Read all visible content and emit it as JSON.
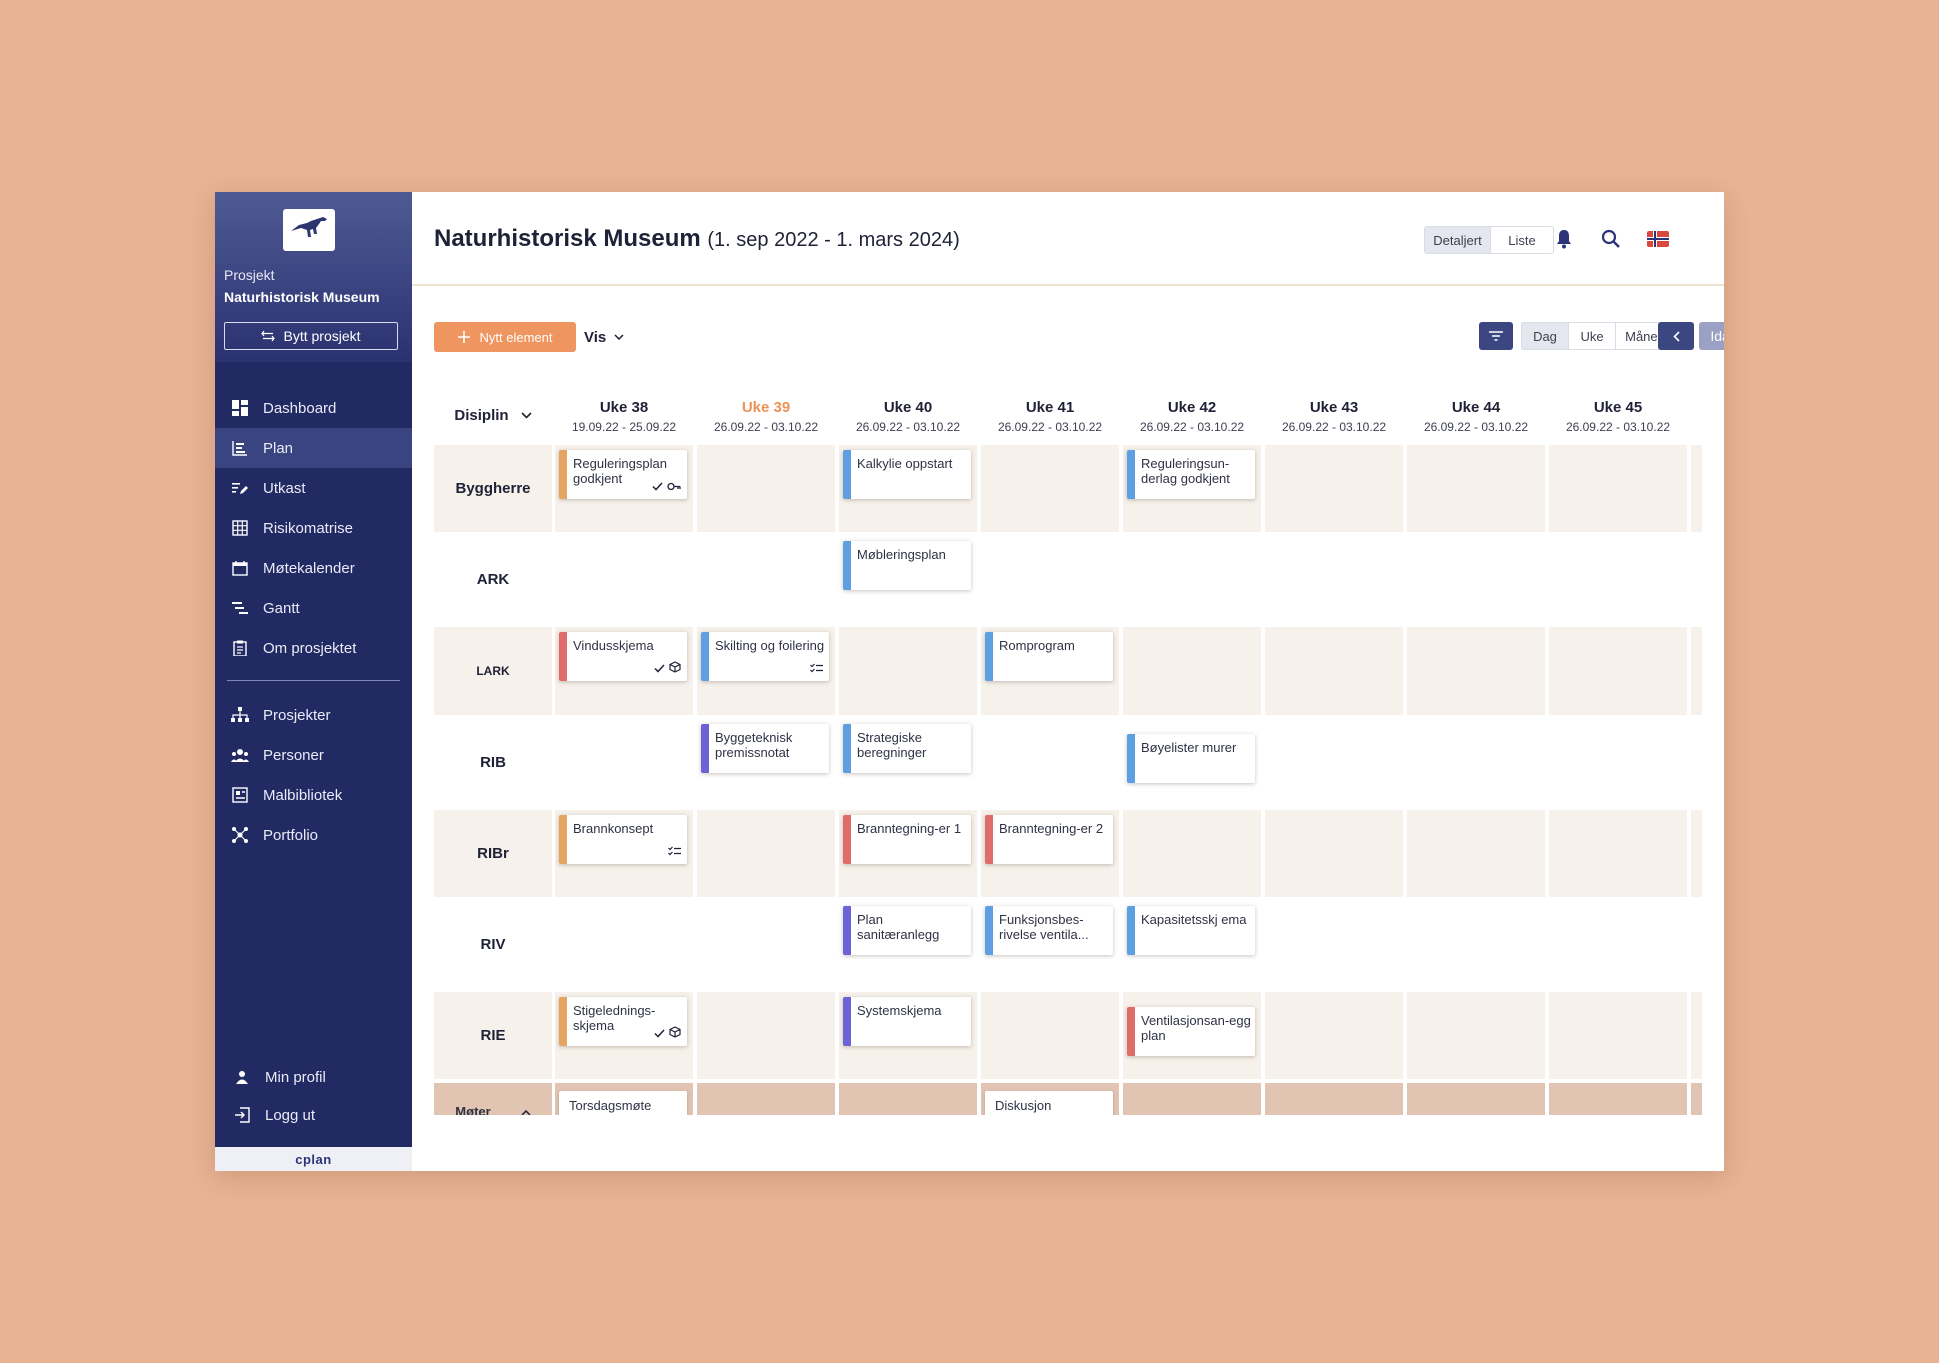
{
  "project": {
    "caption": "Prosjekt",
    "name": "Naturhistorisk Museum",
    "switch_label": "Bytt prosjekt",
    "brand": "cplan"
  },
  "nav": {
    "items": [
      {
        "label": "Dashboard",
        "icon": "dashboard-icon"
      },
      {
        "label": "Plan",
        "icon": "plan-icon",
        "active": true
      },
      {
        "label": "Utkast",
        "icon": "draft-icon"
      },
      {
        "label": "Risikomatrise",
        "icon": "grid-icon"
      },
      {
        "label": "Møtekalender",
        "icon": "calendar-icon"
      },
      {
        "label": "Gantt",
        "icon": "gantt-icon"
      },
      {
        "label": "Om prosjektet",
        "icon": "clipboard-icon"
      }
    ],
    "items2": [
      {
        "label": "Prosjekter",
        "icon": "hierarchy-icon"
      },
      {
        "label": "Personer",
        "icon": "people-icon"
      },
      {
        "label": "Malbibliotek",
        "icon": "library-icon"
      },
      {
        "label": "Portfolio",
        "icon": "network-icon"
      }
    ],
    "bottom": [
      {
        "label": "Min profil",
        "icon": "user-icon"
      },
      {
        "label": "Logg ut",
        "icon": "logout-icon"
      }
    ]
  },
  "header": {
    "title": "Naturhistorisk Museum",
    "range": "(1. sep 2022 - 1. mars 2024)",
    "view_modes": [
      "Detaljert",
      "Liste"
    ],
    "view_selected": "Detaljert"
  },
  "toolbar": {
    "new_label": "Nytt element",
    "vis_label": "Vis",
    "scale": [
      "Dag",
      "Uke",
      "Måned"
    ],
    "scale_selected": "Dag",
    "today_label": "Idag"
  },
  "grid": {
    "disc_head": "Disiplin",
    "weeks": [
      {
        "label": "Uke 38",
        "dates": "19.09.22 - 25.09.22"
      },
      {
        "label": "Uke 39",
        "dates": "26.09.22 - 03.10.22",
        "current": true
      },
      {
        "label": "Uke 40",
        "dates": "26.09.22 - 03.10.22"
      },
      {
        "label": "Uke 41",
        "dates": "26.09.22 - 03.10.22"
      },
      {
        "label": "Uke 42",
        "dates": "26.09.22 - 03.10.22"
      },
      {
        "label": "Uke 43",
        "dates": "26.09.22 - 03.10.22"
      },
      {
        "label": "Uke 44",
        "dates": "26.09.22 - 03.10.22"
      },
      {
        "label": "Uke 45",
        "dates": "26.09.22 - 03.10.22"
      }
    ],
    "rows": [
      {
        "label": "Byggherre",
        "tint": true
      },
      {
        "label": "ARK",
        "tint": false
      },
      {
        "label": "LARK",
        "tint": true
      },
      {
        "label": "RIB",
        "tint": false
      },
      {
        "label": "RIBr",
        "tint": true
      },
      {
        "label": "RIV",
        "tint": false
      },
      {
        "label": "RIE",
        "tint": true
      }
    ],
    "meetings_label": "Møter"
  },
  "cards": [
    {
      "row": 0,
      "col": 0,
      "text": "Reguleringsplan godkjent",
      "color": "#e6a463",
      "icons": [
        "check-icon",
        "key-icon"
      ]
    },
    {
      "row": 0,
      "col": 2,
      "text": "Kalkylie oppstart",
      "color": "#5d9fe0",
      "icons": []
    },
    {
      "row": 0,
      "col": 4,
      "text": "Reguleringsun-derlag godkjent",
      "color": "#5d9fe0",
      "icons": []
    },
    {
      "row": 1,
      "col": 2,
      "text": "Møbleringsplan",
      "color": "#5d9fe0",
      "icons": []
    },
    {
      "row": 2,
      "col": 0,
      "text": "Vindusskjema",
      "color": "#e06b6b",
      "icons": [
        "check-icon",
        "cube-icon"
      ]
    },
    {
      "row": 2,
      "col": 1,
      "text": "Skilting og foilering",
      "color": "#5d9fe0",
      "icons": [
        "checklist-icon"
      ]
    },
    {
      "row": 2,
      "col": 3,
      "text": "Romprogram",
      "color": "#5d9fe0",
      "icons": []
    },
    {
      "row": 3,
      "col": 1,
      "text": "Byggeteknisk premissnotat",
      "color": "#6b63d6",
      "icons": []
    },
    {
      "row": 3,
      "col": 2,
      "text": "Strategiske beregninger",
      "color": "#5d9fe0",
      "icons": []
    },
    {
      "row": 3,
      "col": 4,
      "text": "Bøyelister murer",
      "color": "#5d9fe0",
      "icons": [],
      "offset": 10
    },
    {
      "row": 4,
      "col": 0,
      "text": "Brannkonsept",
      "color": "#e6a463",
      "icons": [
        "checklist-icon"
      ]
    },
    {
      "row": 4,
      "col": 2,
      "text": "Branntegning-er 1",
      "color": "#e06b6b",
      "icons": []
    },
    {
      "row": 4,
      "col": 3,
      "text": "Branntegning-er 2",
      "color": "#e06b6b",
      "icons": []
    },
    {
      "row": 5,
      "col": 2,
      "text": "Plan sanitæranlegg",
      "color": "#6b63d6",
      "icons": []
    },
    {
      "row": 5,
      "col": 3,
      "text": "Funksjonsbes-rivelse ventila...",
      "color": "#5d9fe0",
      "icons": []
    },
    {
      "row": 5,
      "col": 4,
      "text": "Kapasitetsskj ema",
      "color": "#5d9fe0",
      "icons": []
    },
    {
      "row": 6,
      "col": 0,
      "text": "Stigelednings-skjema",
      "color": "#e6a463",
      "icons": [
        "check-icon",
        "cube-icon"
      ]
    },
    {
      "row": 6,
      "col": 2,
      "text": "Systemskjema",
      "color": "#6b63d6",
      "icons": []
    },
    {
      "row": 6,
      "col": 4,
      "text": "Ventilasjonsan-egg plan",
      "color": "#e06b6b",
      "icons": [],
      "offset": 10
    }
  ],
  "meetings": [
    {
      "col": 0,
      "text": "Torsdagsmøte"
    },
    {
      "col": 3,
      "text": "Diskusjon"
    }
  ],
  "colors": {
    "accent": "#ef9560",
    "sidebar": "#222a63",
    "primary_button": "#3c4681",
    "current_week": "#ee9258"
  }
}
